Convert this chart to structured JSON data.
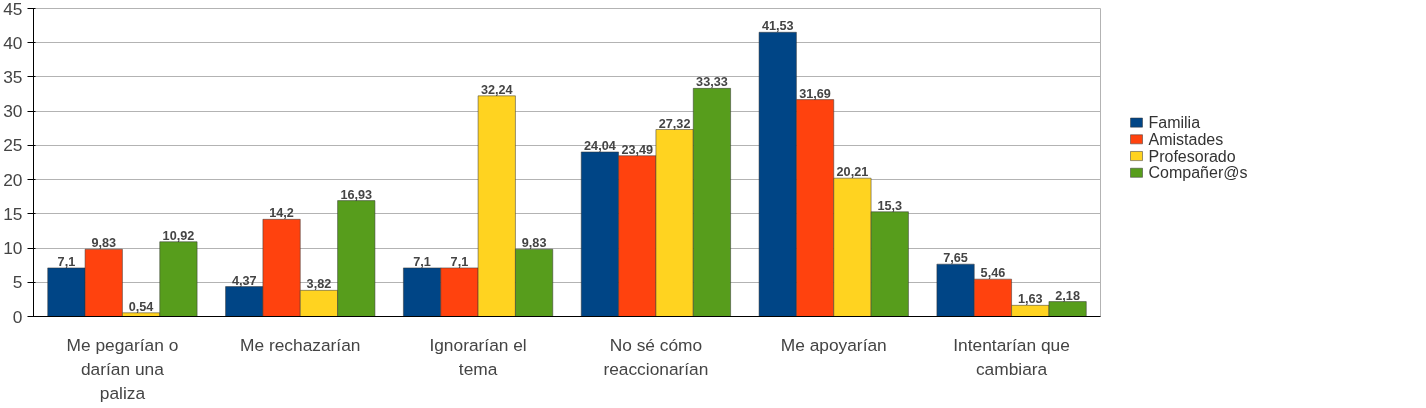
{
  "chart_data": {
    "type": "bar",
    "categories": [
      "Me pegarían o darían una paliza",
      "Me rechazarían",
      "Ignorarían el tema",
      "No sé cómo reaccionarían",
      "Me apoyarían",
      "Intentarían que cambiara"
    ],
    "series": [
      {
        "name": "Familia",
        "color": "#004586",
        "values": [
          7.1,
          4.37,
          7.1,
          24.04,
          41.53,
          7.65
        ],
        "value_labels": [
          "7,1",
          "4,37",
          "7,1",
          "24,04",
          "41,53",
          "7,65"
        ]
      },
      {
        "name": "Amistades",
        "color": "#ff420e",
        "values": [
          9.83,
          14.2,
          7.1,
          23.49,
          31.69,
          5.46
        ],
        "value_labels": [
          "9,83",
          "14,2",
          "7,1",
          "23,49",
          "31,69",
          "5,46"
        ]
      },
      {
        "name": "Profesorado",
        "color": "#ffd320",
        "values": [
          0.54,
          3.82,
          32.24,
          27.32,
          20.21,
          1.63
        ],
        "value_labels": [
          "0,54",
          "3,82",
          "32,24",
          "27,32",
          "20,21",
          "1,63"
        ]
      },
      {
        "name": "Compañer@s",
        "color": "#579d1c",
        "values": [
          10.92,
          16.93,
          9.83,
          33.33,
          15.3,
          2.18
        ],
        "value_labels": [
          "10,92",
          "16,93",
          "9,83",
          "33,33",
          "15,3",
          "2,18"
        ]
      }
    ],
    "ylim": [
      0,
      45
    ],
    "yticks": [
      0,
      5,
      10,
      15,
      20,
      25,
      30,
      35,
      40,
      45
    ],
    "grid": "y",
    "legend": "right"
  }
}
